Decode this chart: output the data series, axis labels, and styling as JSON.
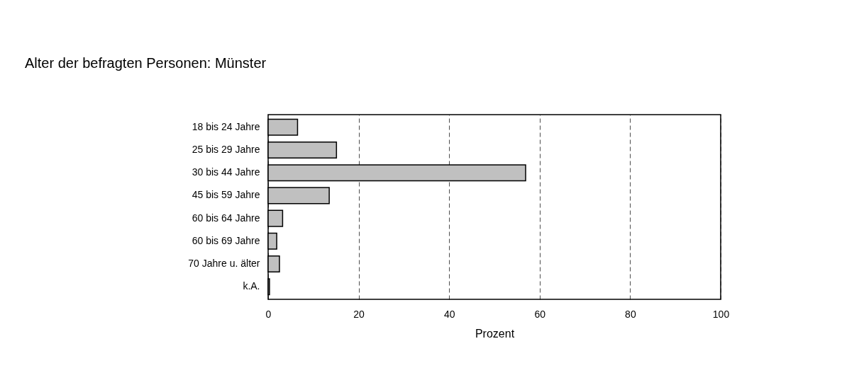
{
  "chart_data": {
    "type": "bar",
    "orientation": "horizontal",
    "title": "Alter der befragten Personen: Münster",
    "xlabel": "Prozent",
    "categories": [
      "18 bis 24 Jahre",
      "25 bis 29 Jahre",
      "30 bis 44 Jahre",
      "45 bis 59 Jahre",
      "60 bis 64 Jahre",
      "60 bis 69 Jahre",
      "70 Jahre u. älter",
      "k.A."
    ],
    "values": [
      6.5,
      15.1,
      56.9,
      13.5,
      3.2,
      1.9,
      2.5,
      0.3
    ],
    "color": "#c0c0c0",
    "xlim": [
      0,
      100
    ],
    "xticks": [
      0,
      20,
      40,
      60,
      80,
      100
    ],
    "grid": "x"
  }
}
